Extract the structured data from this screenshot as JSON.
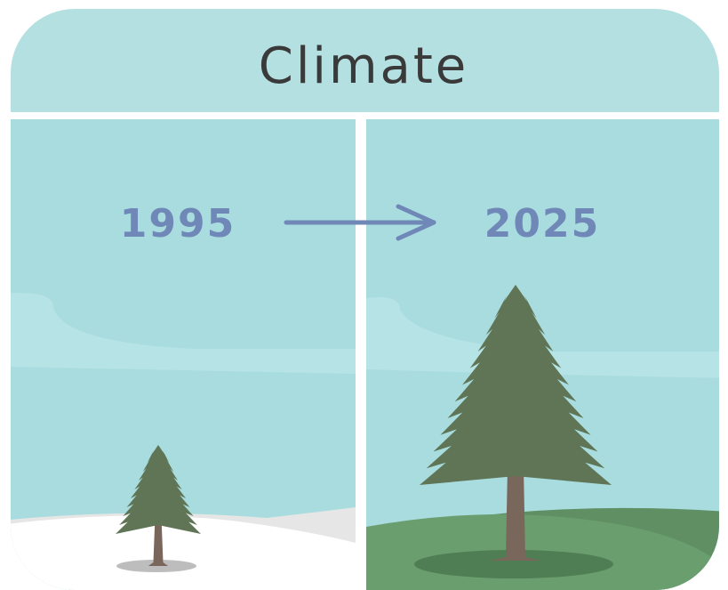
{
  "title": "Climate",
  "panels": [
    {
      "year": "1995"
    },
    {
      "year": "2025"
    }
  ]
}
